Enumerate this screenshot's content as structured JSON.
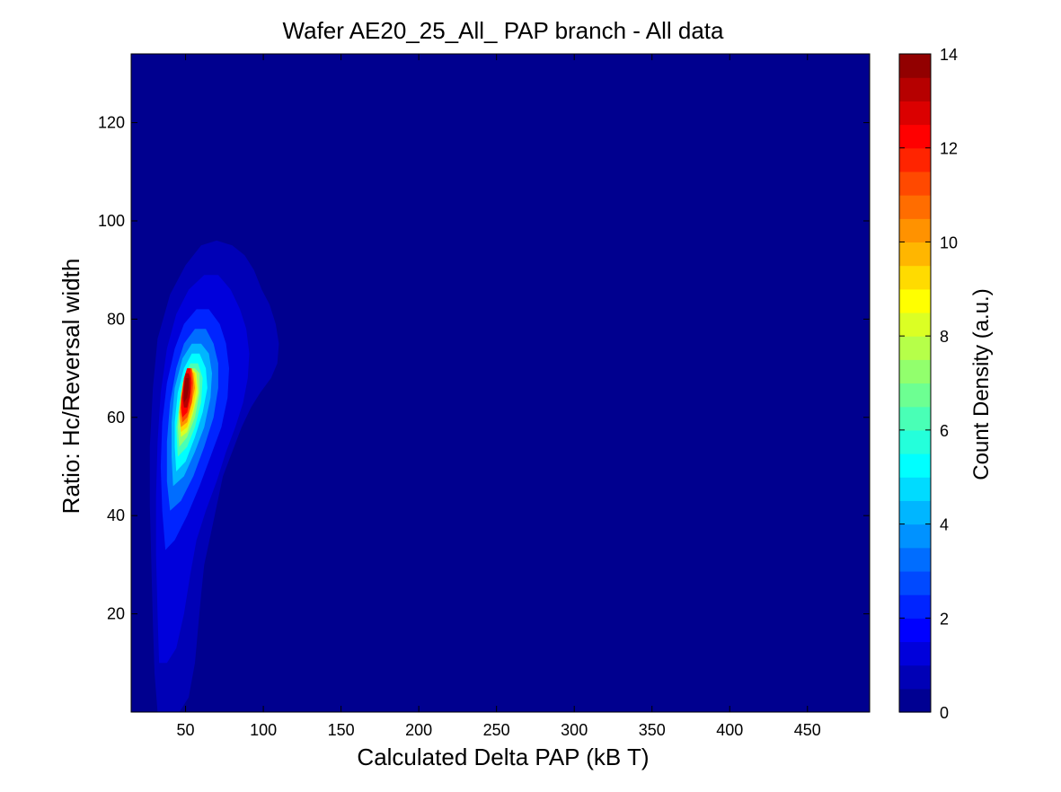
{
  "chart_data": {
    "type": "heatmap",
    "subtype": "filled-contour",
    "title": "Wafer AE20_25_All_ PAP branch - All data",
    "xlabel": "Calculated Delta PAP (kB T)",
    "ylabel": "Ratio: Hc/Reversal width",
    "colorbar_label": "Count Density (a.u.)",
    "xlim": [
      15,
      490
    ],
    "ylim": [
      0,
      134
    ],
    "x_ticks": [
      50,
      100,
      150,
      200,
      250,
      300,
      350,
      400,
      450
    ],
    "y_ticks": [
      20,
      40,
      60,
      80,
      100,
      120
    ],
    "colorbar_ticks": [
      0,
      2,
      4,
      6,
      8,
      10,
      12,
      14
    ],
    "colorbar_range": [
      0,
      14
    ],
    "colorbar_levels": 28,
    "colormap": "jet",
    "background_color": "#00008f",
    "contours": [
      {
        "level": 0.5,
        "points": [
          [
            32,
            0
          ],
          [
            46,
            0
          ],
          [
            52,
            3
          ],
          [
            56,
            10
          ],
          [
            58,
            17
          ],
          [
            60,
            24
          ],
          [
            62,
            30
          ],
          [
            66,
            36
          ],
          [
            70,
            42
          ],
          [
            74,
            48
          ],
          [
            80,
            53
          ],
          [
            86,
            58
          ],
          [
            92,
            62
          ],
          [
            98,
            65
          ],
          [
            105,
            68
          ],
          [
            109,
            71
          ],
          [
            110,
            75
          ],
          [
            108,
            79
          ],
          [
            104,
            83
          ],
          [
            99,
            86
          ],
          [
            94,
            90
          ],
          [
            88,
            93
          ],
          [
            80,
            95
          ],
          [
            70,
            96
          ],
          [
            60,
            95
          ],
          [
            50,
            91
          ],
          [
            40,
            85
          ],
          [
            32,
            76
          ],
          [
            29,
            66
          ],
          [
            27,
            54
          ],
          [
            27,
            42
          ],
          [
            28,
            30
          ],
          [
            29,
            18
          ],
          [
            30,
            8
          ]
        ]
      },
      {
        "level": 1.0,
        "points": [
          [
            33,
            10
          ],
          [
            38,
            10
          ],
          [
            44,
            13
          ],
          [
            49,
            20
          ],
          [
            53,
            28
          ],
          [
            57,
            35
          ],
          [
            63,
            41
          ],
          [
            70,
            47
          ],
          [
            76,
            53
          ],
          [
            82,
            58
          ],
          [
            87,
            63
          ],
          [
            90,
            68
          ],
          [
            91,
            73
          ],
          [
            89,
            78
          ],
          [
            85,
            82
          ],
          [
            79,
            86
          ],
          [
            71,
            89
          ],
          [
            62,
            89
          ],
          [
            52,
            86
          ],
          [
            44,
            81
          ],
          [
            38,
            74
          ],
          [
            34,
            65
          ],
          [
            32,
            55
          ],
          [
            31,
            44
          ],
          [
            31,
            32
          ],
          [
            32,
            20
          ]
        ]
      },
      {
        "level": 2.0,
        "points": [
          [
            37,
            33
          ],
          [
            43,
            35
          ],
          [
            51,
            40
          ],
          [
            59,
            46
          ],
          [
            66,
            52
          ],
          [
            73,
            58
          ],
          [
            77,
            64
          ],
          [
            78,
            70
          ],
          [
            76,
            75
          ],
          [
            72,
            79
          ],
          [
            65,
            82
          ],
          [
            57,
            82
          ],
          [
            49,
            79
          ],
          [
            43,
            74
          ],
          [
            38,
            67
          ],
          [
            35,
            59
          ],
          [
            34,
            50
          ],
          [
            35,
            41
          ]
        ]
      },
      {
        "level": 3.0,
        "points": [
          [
            40,
            41
          ],
          [
            47,
            43
          ],
          [
            55,
            48
          ],
          [
            62,
            54
          ],
          [
            68,
            60
          ],
          [
            71,
            66
          ],
          [
            71,
            71
          ],
          [
            68,
            75
          ],
          [
            63,
            78
          ],
          [
            56,
            78
          ],
          [
            49,
            75
          ],
          [
            44,
            70
          ],
          [
            40,
            63
          ],
          [
            38,
            55
          ],
          [
            38,
            47
          ]
        ]
      },
      {
        "level": 4.0,
        "points": [
          [
            42,
            46
          ],
          [
            49,
            48
          ],
          [
            56,
            53
          ],
          [
            62,
            58
          ],
          [
            66,
            64
          ],
          [
            67,
            69
          ],
          [
            65,
            73
          ],
          [
            60,
            75
          ],
          [
            54,
            75
          ],
          [
            48,
            72
          ],
          [
            43,
            66
          ],
          [
            41,
            59
          ],
          [
            41,
            52
          ]
        ]
      },
      {
        "level": 5.0,
        "points": [
          [
            44,
            49
          ],
          [
            50,
            51
          ],
          [
            56,
            56
          ],
          [
            61,
            61
          ],
          [
            64,
            66
          ],
          [
            63,
            70
          ],
          [
            59,
            73
          ],
          [
            54,
            73
          ],
          [
            49,
            70
          ],
          [
            45,
            65
          ],
          [
            43,
            59
          ],
          [
            43,
            54
          ]
        ]
      },
      {
        "level": 6.0,
        "points": [
          [
            45,
            52
          ],
          [
            51,
            54
          ],
          [
            56,
            58
          ],
          [
            60,
            63
          ],
          [
            61,
            68
          ],
          [
            58,
            71
          ],
          [
            53,
            71
          ],
          [
            49,
            68
          ],
          [
            46,
            63
          ],
          [
            44,
            58
          ]
        ]
      },
      {
        "level": 7.0,
        "points": [
          [
            46,
            54
          ],
          [
            51,
            56
          ],
          [
            56,
            60
          ],
          [
            59,
            65
          ],
          [
            59,
            69
          ],
          [
            56,
            70
          ],
          [
            52,
            70
          ],
          [
            48,
            67
          ],
          [
            46,
            62
          ],
          [
            45,
            58
          ]
        ]
      },
      {
        "level": 8.0,
        "points": [
          [
            47,
            56
          ],
          [
            51,
            57
          ],
          [
            55,
            61
          ],
          [
            58,
            65
          ],
          [
            57,
            69
          ],
          [
            54,
            70
          ],
          [
            50,
            68
          ],
          [
            47,
            65
          ],
          [
            46,
            60
          ]
        ]
      },
      {
        "level": 9.0,
        "points": [
          [
            47,
            57
          ],
          [
            51,
            58
          ],
          [
            55,
            62
          ],
          [
            57,
            66
          ],
          [
            56,
            69
          ],
          [
            53,
            70
          ],
          [
            50,
            68
          ],
          [
            47,
            64
          ],
          [
            46,
            60
          ]
        ]
      },
      {
        "level": 10.0,
        "points": [
          [
            47,
            58
          ],
          [
            51,
            59
          ],
          [
            54,
            63
          ],
          [
            56,
            66
          ],
          [
            55,
            69
          ],
          [
            52,
            70
          ],
          [
            49,
            68
          ],
          [
            47,
            64
          ],
          [
            46,
            61
          ]
        ]
      },
      {
        "level": 11.0,
        "points": [
          [
            48,
            59
          ],
          [
            51,
            60
          ],
          [
            54,
            63
          ],
          [
            55,
            67
          ],
          [
            54,
            70
          ],
          [
            51,
            70
          ],
          [
            49,
            68
          ],
          [
            47,
            64
          ],
          [
            47,
            61
          ]
        ]
      },
      {
        "level": 12.0,
        "points": [
          [
            48,
            60
          ],
          [
            51,
            61
          ],
          [
            53,
            64
          ],
          [
            54,
            67
          ],
          [
            53,
            70
          ],
          [
            51,
            70
          ],
          [
            49,
            68
          ],
          [
            48,
            65
          ],
          [
            47,
            62
          ]
        ]
      },
      {
        "level": 13.0,
        "points": [
          [
            49,
            62
          ],
          [
            51,
            62
          ],
          [
            53,
            65
          ],
          [
            53,
            68
          ],
          [
            52,
            69
          ],
          [
            50,
            69
          ],
          [
            49,
            67
          ],
          [
            48,
            64
          ]
        ]
      },
      {
        "level": 13.5,
        "points": [
          [
            49,
            63
          ],
          [
            51,
            64
          ],
          [
            52,
            66
          ],
          [
            52,
            68
          ],
          [
            50,
            68
          ],
          [
            49,
            66
          ]
        ]
      }
    ]
  }
}
